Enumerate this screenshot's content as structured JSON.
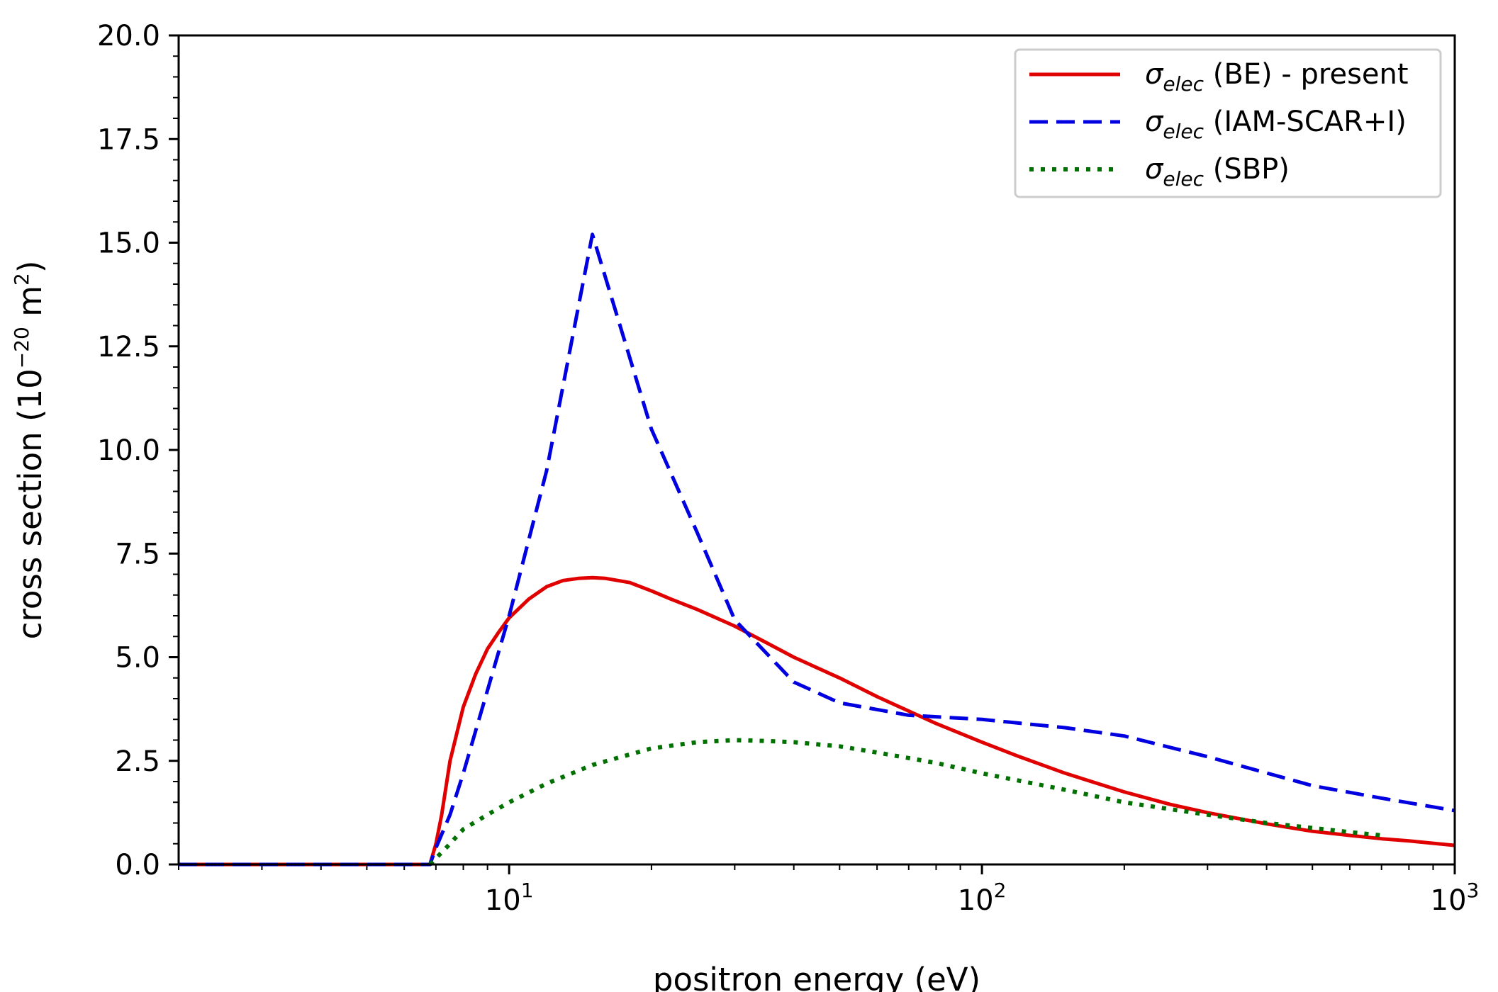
{
  "chart_data": {
    "type": "line",
    "xlabel": "positron energy (eV)",
    "ylabel": {
      "prefix": "cross section (10",
      "exponent": "−20",
      "middle": " m",
      "unit_exponent": "2",
      "suffix": ")"
    },
    "x_scale": "log",
    "xlim": [
      2,
      1000
    ],
    "ylim": [
      0,
      20
    ],
    "grid": false,
    "legend_position": "top-right",
    "x_ticks": [
      {
        "value": 10,
        "base": "10",
        "exp": "1"
      },
      {
        "value": 100,
        "base": "10",
        "exp": "2"
      },
      {
        "value": 1000,
        "base": "10",
        "exp": "3"
      }
    ],
    "y_ticks": [
      {
        "value": 0,
        "label": "0.0"
      },
      {
        "value": 2.5,
        "label": "2.5"
      },
      {
        "value": 5,
        "label": "5.0"
      },
      {
        "value": 7.5,
        "label": "7.5"
      },
      {
        "value": 10,
        "label": "10.0"
      },
      {
        "value": 12.5,
        "label": "12.5"
      },
      {
        "value": 15,
        "label": "15.0"
      },
      {
        "value": 17.5,
        "label": "17.5"
      },
      {
        "value": 20,
        "label": "20.0"
      }
    ],
    "series": [
      {
        "symbol": "σ",
        "subscript": "elec",
        "suffix": " (BE) - present",
        "color": "#e00000",
        "style": "solid",
        "x": [
          2,
          6.8,
          7.0,
          7.2,
          7.5,
          8,
          8.5,
          9,
          9.5,
          10,
          11,
          12,
          13,
          14,
          15,
          16,
          17,
          18,
          20,
          22,
          25,
          30,
          35,
          40,
          50,
          60,
          70,
          80,
          100,
          120,
          150,
          200,
          250,
          300,
          400,
          500,
          600,
          700,
          800,
          1000
        ],
        "y": [
          0,
          0,
          0.5,
          1.2,
          2.5,
          3.8,
          4.6,
          5.2,
          5.6,
          5.95,
          6.4,
          6.7,
          6.85,
          6.9,
          6.92,
          6.9,
          6.85,
          6.8,
          6.6,
          6.4,
          6.15,
          5.75,
          5.35,
          5.0,
          4.5,
          4.05,
          3.7,
          3.4,
          2.95,
          2.6,
          2.2,
          1.75,
          1.45,
          1.25,
          0.98,
          0.8,
          0.7,
          0.62,
          0.57,
          0.46
        ]
      },
      {
        "symbol": "σ",
        "subscript": "elec",
        "suffix": " (IAM-SCAR+I)",
        "color": "#0000e0",
        "style": "dashed",
        "x": [
          2,
          6.8,
          7.0,
          7.5,
          8,
          9,
          10,
          12,
          15,
          20,
          25,
          30,
          40,
          50,
          70,
          100,
          150,
          200,
          300,
          500,
          700,
          1000
        ],
        "y": [
          0,
          0,
          0.4,
          1.2,
          2.2,
          4.2,
          6.0,
          9.5,
          15.2,
          10.5,
          8.0,
          5.9,
          4.4,
          3.9,
          3.6,
          3.5,
          3.3,
          3.1,
          2.6,
          1.9,
          1.6,
          1.3
        ]
      },
      {
        "symbol": "σ",
        "subscript": "elec",
        "suffix": " (SBP)",
        "color": "#007000",
        "style": "dotted",
        "x": [
          6.8,
          7.5,
          8,
          9,
          10,
          12,
          15,
          20,
          25,
          30,
          35,
          40,
          50,
          60,
          80,
          100,
          150,
          200,
          300,
          400,
          500,
          600,
          700
        ],
        "y": [
          0,
          0.5,
          0.85,
          1.2,
          1.5,
          1.95,
          2.4,
          2.8,
          2.95,
          3.0,
          2.98,
          2.95,
          2.85,
          2.7,
          2.45,
          2.2,
          1.8,
          1.5,
          1.2,
          1.0,
          0.88,
          0.78,
          0.7
        ]
      }
    ]
  }
}
